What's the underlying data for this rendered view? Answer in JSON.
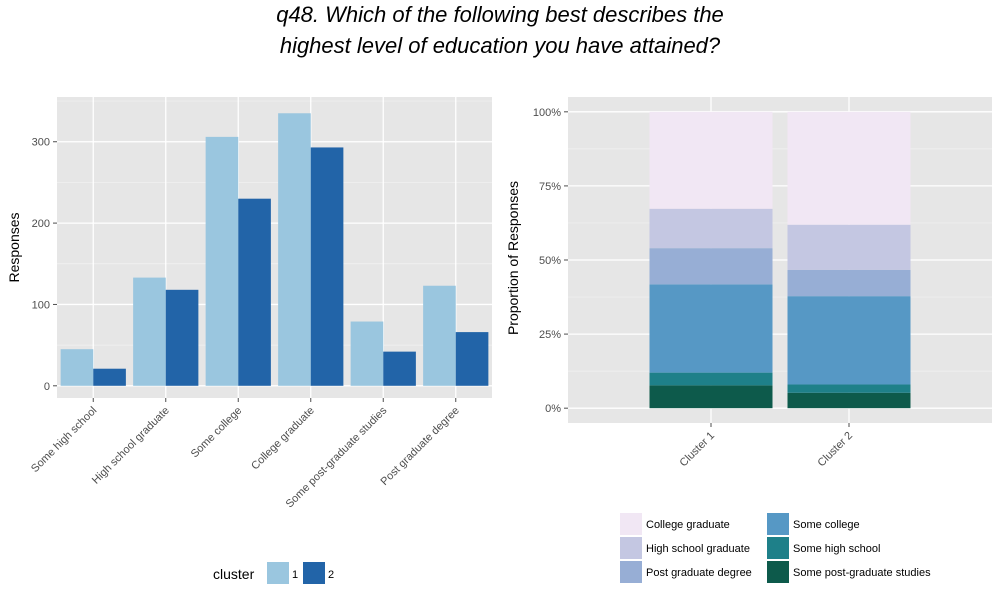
{
  "title_lines": [
    "q48. Which of the following best describes the",
    "highest level of education you have attained?"
  ],
  "chart_data": [
    {
      "type": "bar",
      "title": "",
      "xlabel": "",
      "ylabel": "Responses",
      "categories": [
        "Some high school",
        "High school graduate",
        "Some college",
        "College graduate",
        "Some post-graduate studies",
        "Post graduate degree"
      ],
      "series": [
        {
          "name": "1",
          "color": "#9ac6df",
          "values": [
            45,
            133,
            306,
            335,
            79,
            123
          ]
        },
        {
          "name": "2",
          "color": "#2264a8",
          "values": [
            21,
            118,
            230,
            293,
            42,
            66
          ]
        }
      ],
      "yticks": [
        0,
        100,
        200,
        300
      ],
      "ylim": [
        -15,
        355
      ],
      "grid": true,
      "legend": {
        "title": "cluster",
        "position": "bottom",
        "entries": [
          "1",
          "2"
        ]
      }
    },
    {
      "type": "bar",
      "stacked": true,
      "title": "",
      "xlabel": "",
      "ylabel": "Proportion of Responses",
      "categories": [
        "Cluster 1",
        "Cluster 2"
      ],
      "series": [
        {
          "name": "Some post-graduate studies",
          "color": "#0d5a4b",
          "values": [
            0.077,
            0.052
          ]
        },
        {
          "name": "Some high school",
          "color": "#1e8089",
          "values": [
            0.043,
            0.028
          ]
        },
        {
          "name": "Some college",
          "color": "#5698c5",
          "values": [
            0.298,
            0.298
          ]
        },
        {
          "name": "Post graduate degree",
          "color": "#97aed5",
          "values": [
            0.122,
            0.089
          ]
        },
        {
          "name": "High school graduate",
          "color": "#c4c7e2",
          "values": [
            0.133,
            0.152
          ]
        },
        {
          "name": "College graduate",
          "color": "#f1e7f4",
          "values": [
            0.327,
            0.381
          ]
        }
      ],
      "yticks": [
        "0%",
        "25%",
        "50%",
        "75%",
        "100%"
      ],
      "ylim": [
        -0.05,
        1.05
      ],
      "grid": true,
      "legend": {
        "position": "bottom",
        "columns": [
          [
            "College graduate",
            "High school graduate",
            "Post graduate degree"
          ],
          [
            "Some college",
            "Some high school",
            "Some post-graduate studies"
          ]
        ]
      }
    }
  ]
}
